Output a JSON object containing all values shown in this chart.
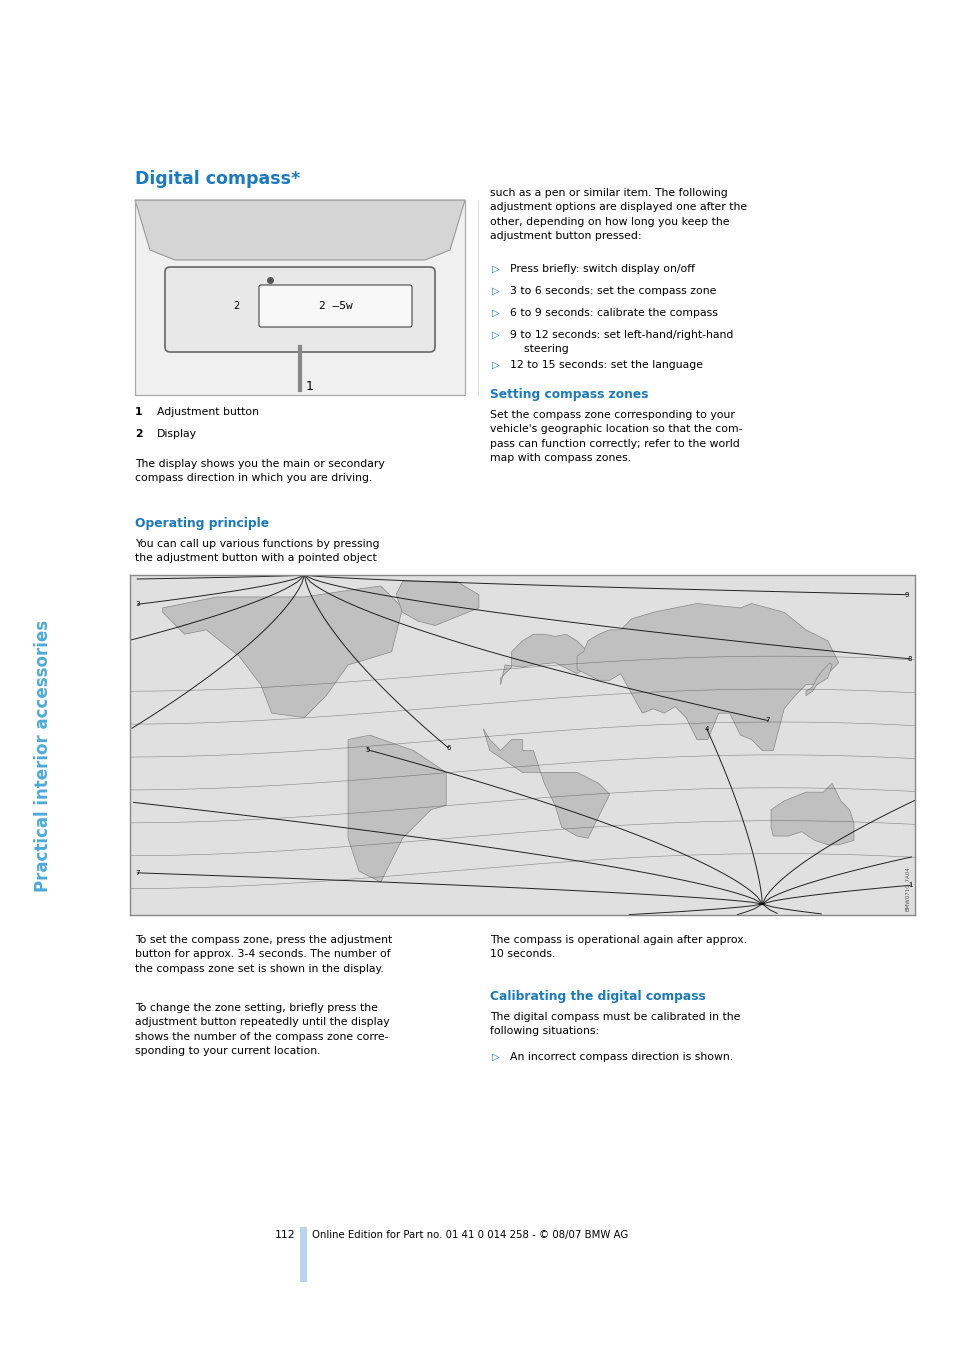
{
  "page_bg": "#ffffff",
  "sidebar_color": "#4aabde",
  "sidebar_text": "Practical interior accessories",
  "title": "Digital compass*",
  "title_color": "#1a7abf",
  "section_color": "#1a7abf",
  "body_font_size": 7.8,
  "section_font_size": 8.8,
  "title_font_size": 12.5,
  "page_number": "112",
  "footer_text": "Online Edition for Part no. 01 41 0 014 258 - © 08/07 BMW AG",
  "blue_bar_color": "#b8d4ef",
  "right_col_para1": "such as a pen or similar item. The following\nadjustment options are displayed one after the\nother, depending on how long you keep the\nadjustment button pressed:",
  "bullets": [
    "Press briefly: switch display on/off",
    "3 to 6 seconds: set the compass zone",
    "6 to 9 seconds: calibrate the compass",
    "9 to 12 seconds: set left-hand/right-hand\n    steering",
    "12 to 15 seconds: set the language"
  ],
  "item1_text": "Adjustment button",
  "item2_text": "Display",
  "display_para": "The display shows you the main or secondary\ncompass direction in which you are driving.",
  "section1_title": "Operating principle",
  "section1_para": "You can call up various functions by pressing\nthe adjustment button with a pointed object",
  "section2_title": "Setting compass zones",
  "section2_para": "Set the compass zone corresponding to your\nvehicle's geographic location so that the com-\npass can function correctly; refer to the world\nmap with compass zones.",
  "lower_left_para1": "To set the compass zone, press the adjustment\nbutton for approx. 3-4 seconds. The number of\nthe compass zone set is shown in the display.",
  "lower_left_para2": "To change the zone setting, briefly press the\nadjustment button repeatedly until the display\nshows the number of the compass zone corre-\nsponding to your current location.",
  "lower_right_para1": "The compass is operational again after approx.\n10 seconds.",
  "section3_title": "Calibrating the digital compass",
  "section3_para": "The digital compass must be calibrated in the\nfollowing situations:",
  "section3_bullet": "An incorrect compass direction is shown."
}
